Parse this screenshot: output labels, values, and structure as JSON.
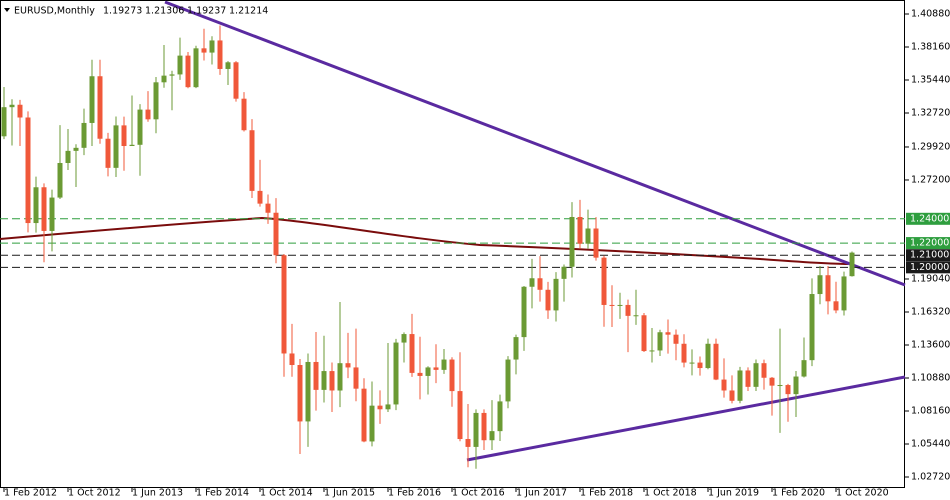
{
  "chart_data": {
    "type": "candlestick",
    "symbol": "EURUSD,Monthly",
    "categories": [
      "1 Feb 2012",
      null,
      null,
      null,
      null,
      null,
      null,
      null,
      "1 Oct 2012",
      null,
      null,
      null,
      null,
      null,
      null,
      null,
      "1 Jun 2013",
      null,
      null,
      null,
      null,
      null,
      null,
      null,
      "1 Feb 2014",
      null,
      null,
      null,
      null,
      null,
      null,
      null,
      "1 Oct 2014",
      null,
      null,
      null,
      null,
      null,
      null,
      null,
      "1 Jun 2015",
      null,
      null,
      null,
      null,
      null,
      null,
      null,
      "1 Feb 2016",
      null,
      null,
      null,
      null,
      null,
      null,
      null,
      "1 Oct 2016",
      null,
      null,
      null,
      null,
      null,
      null,
      null,
      "1 Jun 2017",
      null,
      null,
      null,
      null,
      null,
      null,
      null,
      "1 Feb 2018",
      null,
      null,
      null,
      null,
      null,
      null,
      null,
      "1 Oct 2018",
      null,
      null,
      null,
      null,
      null,
      null,
      null,
      "1 Jun 2019",
      null,
      null,
      null,
      null,
      null,
      null,
      null,
      "1 Feb 2020",
      null,
      null,
      null,
      null,
      null,
      null,
      null,
      "1 Oct 2020",
      null,
      null
    ],
    "open": [
      1.308,
      1.332,
      1.334,
      1.3235,
      1.2365,
      1.266,
      1.23,
      1.2575,
      1.286,
      1.296,
      1.2985,
      1.319,
      1.3575,
      1.306,
      1.282,
      1.317,
      1.3,
      1.301,
      1.33,
      1.322,
      1.3525,
      1.358,
      1.359,
      1.3745,
      1.3485,
      1.3805,
      1.377,
      1.387,
      1.3635,
      1.369,
      1.339,
      1.313,
      1.263,
      1.2525,
      1.245,
      1.21,
      1.129,
      1.1195,
      1.073,
      1.122,
      1.099,
      1.1145,
      1.0985,
      1.121,
      1.1175,
      1.1,
      1.0565,
      1.086,
      1.083,
      1.087,
      1.138,
      1.145,
      1.113,
      1.1105,
      1.1175,
      1.1155,
      1.124,
      1.098,
      1.0585,
      1.052,
      1.08,
      1.0575,
      1.065,
      1.0895,
      1.124,
      1.1425,
      1.184,
      1.191,
      1.1815,
      1.1645,
      1.1905,
      1.2005,
      1.2415,
      1.2195,
      1.232,
      1.208,
      1.169,
      1.1685,
      1.169,
      1.16,
      1.1605,
      1.131,
      1.1315,
      1.1465,
      1.1445,
      1.137,
      1.1215,
      1.1215,
      1.117,
      1.137,
      1.1075,
      1.0985,
      1.09,
      1.115,
      1.1015,
      1.121,
      1.109,
      1.1025,
      1.103,
      1.0955,
      1.11,
      1.1235,
      1.178,
      1.1935,
      1.172,
      1.1645,
      1.19273
    ],
    "high": [
      1.3486,
      1.3385,
      1.338,
      1.3285,
      1.2748,
      1.2692,
      1.264,
      1.3172,
      1.314,
      1.3014,
      1.3308,
      1.3711,
      1.3711,
      1.3108,
      1.3243,
      1.3242,
      1.3416,
      1.3345,
      1.3452,
      1.3569,
      1.3833,
      1.362,
      1.3893,
      1.3775,
      1.3826,
      1.3966,
      1.3905,
      1.3993,
      1.37,
      1.37,
      1.3444,
      1.3222,
      1.2886,
      1.26,
      1.257,
      1.211,
      1.1534,
      1.1245,
      1.129,
      1.1467,
      1.1436,
      1.1216,
      1.1714,
      1.146,
      1.1495,
      1.1086,
      1.1059,
      1.0986,
      1.1376,
      1.141,
      1.1464,
      1.1616,
      1.1428,
      1.1185,
      1.1366,
      1.1327,
      1.1259,
      1.13,
      1.0874,
      1.0829,
      1.0829,
      1.0906,
      1.0951,
      1.1268,
      1.1445,
      1.1846,
      1.207,
      1.2092,
      1.188,
      1.1961,
      1.2023,
      1.2537,
      1.2556,
      1.2476,
      1.2414,
      1.2097,
      1.1852,
      1.1791,
      1.1734,
      1.1815,
      1.1624,
      1.15,
      1.1486,
      1.157,
      1.1488,
      1.1448,
      1.1324,
      1.1265,
      1.1412,
      1.1412,
      1.125,
      1.111,
      1.118,
      1.1176,
      1.124,
      1.1239,
      1.1096,
      1.1495,
      1.104,
      1.1146,
      1.1422,
      1.1909,
      1.2011,
      1.2011,
      1.1881,
      1.1965,
      1.21306
    ],
    "low": [
      1.3057,
      1.3004,
      1.3,
      1.2288,
      1.2286,
      1.2042,
      1.2132,
      1.2563,
      1.2802,
      1.2662,
      1.2925,
      1.3,
      1.3019,
      1.275,
      1.2745,
      1.2796,
      1.3,
      1.2755,
      1.32,
      1.3105,
      1.348,
      1.3295,
      1.3545,
      1.3476,
      1.3477,
      1.3705,
      1.3672,
      1.3586,
      1.3503,
      1.3366,
      1.312,
      1.2571,
      1.25,
      1.2358,
      1.2034,
      1.1098,
      1.1098,
      1.0462,
      1.052,
      1.0819,
      1.0886,
      1.0808,
      1.0848,
      1.1087,
      1.0896,
      1.0558,
      1.0524,
      1.071,
      1.0808,
      1.0823,
      1.1216,
      1.1097,
      1.0912,
      1.0952,
      1.1046,
      1.1122,
      1.0851,
      1.0567,
      1.0352,
      1.034,
      1.0494,
      1.0494,
      1.0569,
      1.0839,
      1.1118,
      1.1312,
      1.1662,
      1.1717,
      1.1575,
      1.1554,
      1.1717,
      1.1916,
      1.2153,
      1.2154,
      1.2055,
      1.151,
      1.1508,
      1.1575,
      1.1301,
      1.1526,
      1.1302,
      1.1216,
      1.1269,
      1.1289,
      1.1234,
      1.1176,
      1.111,
      1.1107,
      1.116,
      1.107,
      1.0926,
      1.0879,
      1.088,
      1.0981,
      1.0981,
      1.0992,
      1.0778,
      1.0636,
      1.0727,
      1.0766,
      1.1092,
      1.1186,
      1.1696,
      1.1612,
      1.1622,
      1.1603,
      1.19237
    ],
    "close": [
      1.332,
      1.334,
      1.3235,
      1.2365,
      1.266,
      1.23,
      1.2575,
      1.286,
      1.296,
      1.2985,
      1.319,
      1.3575,
      1.306,
      1.282,
      1.317,
      1.3,
      1.301,
      1.33,
      1.322,
      1.3525,
      1.358,
      1.359,
      1.3745,
      1.3485,
      1.3805,
      1.377,
      1.387,
      1.3635,
      1.369,
      1.339,
      1.313,
      1.263,
      1.2525,
      1.245,
      1.21,
      1.129,
      1.1195,
      1.073,
      1.122,
      1.099,
      1.1145,
      1.0985,
      1.121,
      1.1175,
      1.1,
      1.0565,
      1.086,
      1.083,
      1.087,
      1.138,
      1.145,
      1.113,
      1.1105,
      1.1175,
      1.1155,
      1.124,
      1.098,
      1.0585,
      1.052,
      1.08,
      1.0575,
      1.065,
      1.0895,
      1.124,
      1.1425,
      1.184,
      1.191,
      1.1815,
      1.1645,
      1.1905,
      1.2005,
      1.2415,
      1.2195,
      1.232,
      1.208,
      1.169,
      1.1685,
      1.169,
      1.16,
      1.1605,
      1.131,
      1.1315,
      1.1465,
      1.1445,
      1.137,
      1.1215,
      1.1215,
      1.117,
      1.137,
      1.1075,
      1.0985,
      1.09,
      1.115,
      1.1015,
      1.121,
      1.109,
      1.1025,
      1.103,
      1.0955,
      1.11,
      1.1235,
      1.178,
      1.1935,
      1.172,
      1.1645,
      1.1925,
      1.21214
    ],
    "up_color": "#6b9a34",
    "down_color": "#f0583a",
    "ylim": [
      1.01813,
      1.42034
    ],
    "yticks": [
      {
        "value": 1.4088,
        "label": "1.40880"
      },
      {
        "value": 1.3816,
        "label": "1.38160"
      },
      {
        "value": 1.3544,
        "label": "1.35440"
      },
      {
        "value": 1.3272,
        "label": "1.32720"
      },
      {
        "value": 1.2992,
        "label": "1.29920"
      },
      {
        "value": 1.272,
        "label": "1.27200"
      },
      {
        "value": 1.1904,
        "label": "1.19040"
      },
      {
        "value": 1.1632,
        "label": "1.16320"
      },
      {
        "value": 1.136,
        "label": "1.13600"
      },
      {
        "value": 1.1088,
        "label": "1.10880"
      },
      {
        "value": 1.0816,
        "label": "1.08160"
      },
      {
        "value": 1.0544,
        "label": "1.05440"
      },
      {
        "value": 1.0272,
        "label": "1.02720"
      }
    ],
    "levels": [
      {
        "value": 1.24,
        "label": "1.24000",
        "color": "#2e9e3e"
      },
      {
        "value": 1.22,
        "label": "1.22000",
        "color": "#2e9e3e"
      },
      {
        "value": 1.21,
        "label": "1.21000",
        "color": "#1a1a1a"
      },
      {
        "value": 1.2,
        "label": "1.20000",
        "color": "#1a1a1a"
      }
    ]
  }
}
